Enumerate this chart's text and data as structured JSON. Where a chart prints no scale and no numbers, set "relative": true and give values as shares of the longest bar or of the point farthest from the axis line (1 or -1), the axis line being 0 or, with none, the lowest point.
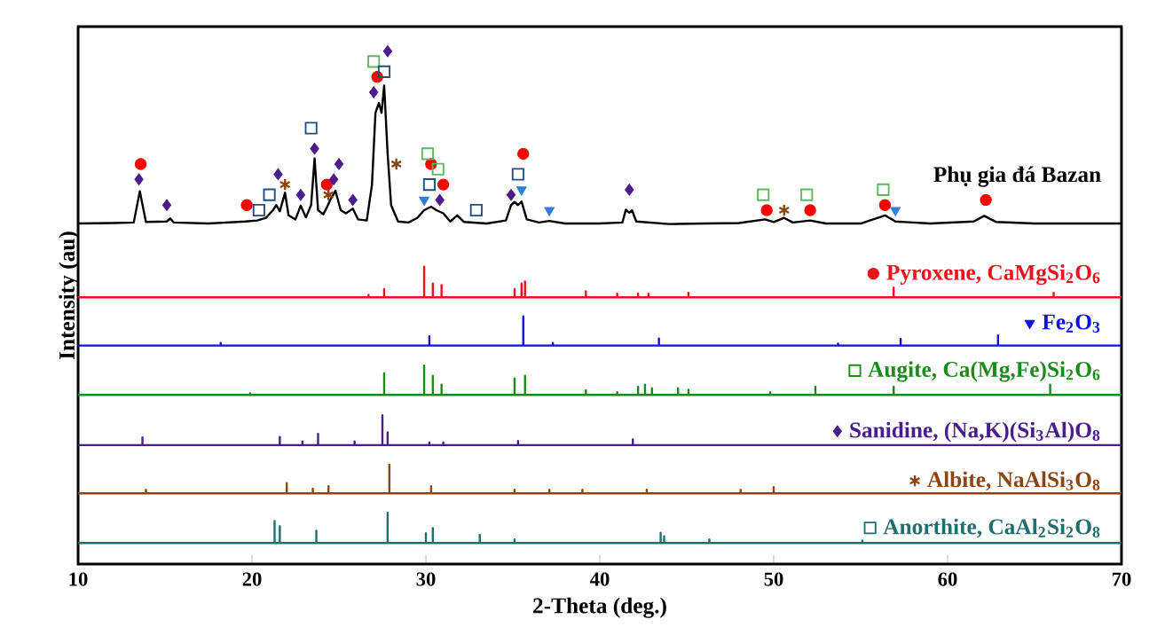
{
  "chart_data": {
    "type": "line",
    "relative": true,
    "legend": "right",
    "xlabel": "2-Theta (deg.)",
    "ylabel": "Intensity (au)",
    "xlim": [
      10,
      70
    ],
    "xticks": [
      10,
      20,
      30,
      40,
      50,
      60,
      70
    ],
    "series": [
      {
        "name": "Phụ gia đá Bazan",
        "color": "#000000",
        "x": [
          10,
          12,
          13.2,
          13.55,
          13.9,
          15.1,
          15.3,
          15.5,
          17.5,
          19.6,
          20.3,
          20.8,
          21.2,
          21.4,
          21.6,
          21.9,
          22.1,
          22.5,
          22.8,
          23.1,
          23.4,
          23.6,
          23.8,
          24.1,
          24.3,
          24.5,
          24.8,
          25.1,
          25.4,
          25.8,
          26.1,
          26.6,
          26.9,
          27.1,
          27.3,
          27.45,
          27.6,
          27.8,
          28.0,
          28.4,
          29.0,
          29.5,
          29.9,
          30.3,
          30.6,
          31.0,
          31.4,
          31.8,
          32.2,
          33.5,
          34.6,
          34.9,
          35.1,
          35.3,
          35.5,
          35.8,
          36.5,
          37.1,
          38,
          40,
          41.3,
          41.5,
          41.7,
          41.85,
          42.1,
          44,
          46,
          48,
          49.5,
          50,
          50.6,
          51.1,
          52.1,
          53,
          55,
          56.4,
          57,
          59,
          61.5,
          62.1,
          62.8,
          65,
          67,
          70
        ],
        "values": [
          0.664,
          0.665,
          0.666,
          0.727,
          0.667,
          0.668,
          0.674,
          0.666,
          0.664,
          0.668,
          0.67,
          0.675,
          0.69,
          0.7,
          0.688,
          0.724,
          0.68,
          0.672,
          0.699,
          0.676,
          0.7,
          0.791,
          0.69,
          0.682,
          0.695,
          0.71,
          0.728,
          0.69,
          0.684,
          0.693,
          0.672,
          0.67,
          0.74,
          0.88,
          0.899,
          0.88,
          0.933,
          0.8,
          0.7,
          0.668,
          0.666,
          0.675,
          0.69,
          0.697,
          0.69,
          0.684,
          0.668,
          0.68,
          0.667,
          0.664,
          0.67,
          0.7,
          0.706,
          0.7,
          0.707,
          0.672,
          0.666,
          0.669,
          0.664,
          0.664,
          0.666,
          0.691,
          0.685,
          0.69,
          0.668,
          0.663,
          0.664,
          0.665,
          0.672,
          0.667,
          0.675,
          0.666,
          0.67,
          0.664,
          0.664,
          0.68,
          0.668,
          0.664,
          0.668,
          0.679,
          0.667,
          0.664,
          0.664,
          0.664
        ]
      },
      {
        "name": "Pyroxene, CaMgSi$_{2}$O$_{6}$",
        "color": "#e8141c",
        "x": [
          10,
          26.7,
          26.7,
          26.7,
          27.6,
          27.6,
          27.6,
          29.9,
          29.9,
          29.9,
          30.4,
          30.4,
          30.4,
          30.9,
          30.9,
          30.9,
          35.1,
          35.1,
          35.1,
          35.5,
          35.5,
          35.5,
          35.7,
          35.7,
          35.7,
          39.2,
          39.2,
          39.2,
          41.0,
          41.0,
          41.0,
          42.2,
          42.2,
          42.2,
          42.8,
          42.8,
          42.8,
          45.1,
          45.1,
          45.1,
          56.9,
          56.9,
          56.9,
          66.1,
          66.1,
          66.1,
          70
        ],
        "values": [
          0.52,
          0.52,
          0.525,
          0.52,
          0.52,
          0.536,
          0.52,
          0.52,
          0.58,
          0.52,
          0.52,
          0.547,
          0.52,
          0.52,
          0.544,
          0.52,
          0.52,
          0.536,
          0.52,
          0.52,
          0.547,
          0.52,
          0.52,
          0.551,
          0.52,
          0.52,
          0.532,
          0.52,
          0.52,
          0.527,
          0.52,
          0.52,
          0.527,
          0.52,
          0.52,
          0.527,
          0.52,
          0.52,
          0.529,
          0.52,
          0.52,
          0.539,
          0.52,
          0.52,
          0.529,
          0.52,
          0.52
        ]
      },
      {
        "type": "scatter",
        "color": "#ff0000",
        "marker": "circle",
        "x": [
          13.6,
          19.7,
          24.3,
          27.2,
          30.3,
          31.0,
          35.6,
          49.6,
          52.1,
          56.4,
          62.2
        ],
        "values": [
          0.78,
          0.7,
          0.74,
          0.95,
          0.78,
          0.74,
          0.8,
          0.69,
          0.69,
          0.7,
          0.71
        ]
      },
      {
        "name": "Fe$_{2}$O$_{3}$",
        "color": "#1010e0",
        "x": [
          10,
          18.2,
          18.2,
          18.2,
          30.2,
          30.2,
          30.2,
          35.6,
          35.6,
          35.6,
          37.3,
          37.3,
          37.3,
          43.4,
          43.4,
          43.4,
          53.7,
          53.7,
          53.7,
          57.3,
          57.3,
          57.3,
          62.9,
          62.9,
          62.9,
          70
        ],
        "values": [
          0.426,
          0.426,
          0.431,
          0.426,
          0.426,
          0.444,
          0.426,
          0.426,
          0.483,
          0.426,
          0.426,
          0.431,
          0.426,
          0.426,
          0.44,
          0.426,
          0.426,
          0.43,
          0.426,
          0.426,
          0.439,
          0.426,
          0.426,
          0.446,
          0.426,
          0.426
        ]
      },
      {
        "type": "scatter",
        "color": "#2f7fd8",
        "marker": "triangle",
        "x": [
          29.9,
          35.5,
          37.1,
          57.0
        ],
        "values": [
          0.71,
          0.73,
          0.69,
          0.69
        ]
      },
      {
        "name": "Augite, Ca(Mg,Fe)Si$_{2}$O$_{6}$",
        "color": "#1a8c1a",
        "x": [
          10,
          19.9,
          19.9,
          19.9,
          27.6,
          27.6,
          27.6,
          29.9,
          29.9,
          29.9,
          30.4,
          30.4,
          30.4,
          30.9,
          30.9,
          30.9,
          35.1,
          35.1,
          35.1,
          35.7,
          35.7,
          35.7,
          39.2,
          39.2,
          39.2,
          41.0,
          41.0,
          41.0,
          42.2,
          42.2,
          42.2,
          42.6,
          42.6,
          42.6,
          43.0,
          43.0,
          43.0,
          44.5,
          44.5,
          44.5,
          45.1,
          45.1,
          45.1,
          49.8,
          49.8,
          49.8,
          52.4,
          52.4,
          52.4,
          56.9,
          56.9,
          56.9,
          65.9,
          65.9,
          65.9,
          70
        ],
        "values": [
          0.33,
          0.33,
          0.333,
          0.33,
          0.33,
          0.372,
          0.33,
          0.33,
          0.387,
          0.33,
          0.33,
          0.367,
          0.33,
          0.33,
          0.35,
          0.33,
          0.33,
          0.362,
          0.33,
          0.33,
          0.367,
          0.33,
          0.33,
          0.339,
          0.33,
          0.33,
          0.335,
          0.33,
          0.33,
          0.346,
          0.33,
          0.33,
          0.35,
          0.33,
          0.33,
          0.343,
          0.33,
          0.33,
          0.343,
          0.33,
          0.33,
          0.34,
          0.33,
          0.33,
          0.335,
          0.33,
          0.33,
          0.346,
          0.33,
          0.33,
          0.346,
          0.33,
          0.33,
          0.35,
          0.33,
          0.33
        ]
      },
      {
        "type": "scatter",
        "color": "#5cb85c",
        "marker": "square",
        "x": [
          27.0,
          30.1,
          30.7,
          49.4,
          51.9,
          56.3
        ],
        "values": [
          0.98,
          0.8,
          0.77,
          0.72,
          0.72,
          0.73
        ]
      },
      {
        "name": "Sanidine, (Na,K)(Si$_{3}$Al)O$_{8}$",
        "color": "#4b1c8c",
        "x": [
          10,
          13.7,
          13.7,
          13.7,
          21.6,
          21.6,
          21.6,
          22.9,
          22.9,
          22.9,
          23.8,
          23.8,
          23.8,
          25.9,
          25.9,
          25.9,
          27.5,
          27.5,
          27.5,
          27.8,
          27.8,
          27.8,
          30.2,
          30.2,
          30.2,
          31.0,
          31.0,
          31.0,
          35.3,
          35.3,
          35.3,
          41.9,
          41.9,
          41.9,
          70
        ],
        "values": [
          0.232,
          0.232,
          0.247,
          0.232,
          0.232,
          0.248,
          0.232,
          0.232,
          0.239,
          0.232,
          0.232,
          0.254,
          0.232,
          0.232,
          0.239,
          0.232,
          0.232,
          0.29,
          0.232,
          0.232,
          0.257,
          0.232,
          0.232,
          0.237,
          0.232,
          0.232,
          0.237,
          0.232,
          0.232,
          0.24,
          0.232,
          0.232,
          0.243,
          0.232,
          0.232
        ]
      },
      {
        "type": "scatter",
        "color": "#4b1c8c",
        "marker": "diamond",
        "x": [
          13.5,
          15.1,
          21.5,
          22.8,
          23.6,
          24.7,
          25.0,
          25.8,
          27.0,
          27.8,
          30.8,
          34.9,
          41.7
        ],
        "values": [
          0.75,
          0.7,
          0.76,
          0.72,
          0.81,
          0.75,
          0.78,
          0.71,
          0.92,
          1.0,
          0.71,
          0.72,
          0.73
        ]
      },
      {
        "name": "Albite, NaAlSi$_{3}$O$_{8}$",
        "color": "#8b4513",
        "x": [
          10,
          13.9,
          13.9,
          13.9,
          22.0,
          22.0,
          22.0,
          23.5,
          23.5,
          23.5,
          24.4,
          24.4,
          24.4,
          27.9,
          27.9,
          27.9,
          30.3,
          30.3,
          30.3,
          35.1,
          35.1,
          35.1,
          37.1,
          37.1,
          37.1,
          39.0,
          39.0,
          39.0,
          42.7,
          42.7,
          42.7,
          48.1,
          48.1,
          48.1,
          50.0,
          50.0,
          50.0,
          70
        ],
        "values": [
          0.138,
          0.138,
          0.145,
          0.138,
          0.138,
          0.158,
          0.138,
          0.138,
          0.147,
          0.138,
          0.138,
          0.152,
          0.138,
          0.138,
          0.194,
          0.138,
          0.138,
          0.152,
          0.138,
          0.138,
          0.145,
          0.138,
          0.138,
          0.145,
          0.138,
          0.138,
          0.145,
          0.138,
          0.138,
          0.145,
          0.138,
          0.138,
          0.145,
          0.138,
          0.138,
          0.15,
          0.138,
          0.138
        ]
      },
      {
        "type": "scatter",
        "color": "#8b4513",
        "marker": "cross",
        "x": [
          21.9,
          24.4,
          28.3,
          50.6
        ],
        "values": [
          0.74,
          0.72,
          0.78,
          0.69
        ]
      },
      {
        "name": "Anorthite, CaAl$_{2}$Si$_{2}$O$_{8}$",
        "color": "#1f6f6f",
        "x": [
          10,
          21.3,
          21.3,
          21.3,
          21.6,
          21.6,
          21.6,
          23.7,
          23.7,
          23.7,
          27.8,
          27.8,
          27.8,
          30.0,
          30.0,
          30.0,
          30.4,
          30.4,
          30.4,
          33.1,
          33.1,
          33.1,
          35.1,
          35.1,
          35.1,
          43.5,
          43.5,
          43.5,
          43.7,
          43.7,
          43.7,
          46.3,
          46.3,
          46.3,
          55.1,
          55.1,
          55.1,
          70
        ],
        "values": [
          0.041,
          0.041,
          0.084,
          0.041,
          0.041,
          0.074,
          0.041,
          0.041,
          0.065,
          0.041,
          0.041,
          0.1,
          0.041,
          0.041,
          0.06,
          0.041,
          0.041,
          0.07,
          0.041,
          0.041,
          0.057,
          0.041,
          0.041,
          0.048,
          0.041,
          0.041,
          0.061,
          0.041,
          0.041,
          0.054,
          0.041,
          0.041,
          0.048,
          0.041,
          0.041,
          0.046,
          0.041,
          0.041
        ]
      },
      {
        "type": "scatter",
        "color": "#1f4f7f",
        "marker": "square",
        "x": [
          20.4,
          21.0,
          23.4,
          27.6,
          30.2,
          32.9,
          35.3
        ],
        "values": [
          0.69,
          0.72,
          0.85,
          0.96,
          0.74,
          0.69,
          0.76
        ]
      }
    ]
  }
}
